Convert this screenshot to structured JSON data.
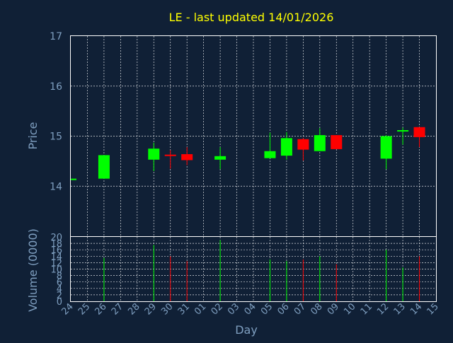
{
  "colors": {
    "background": "#102036",
    "title": "#ffff00",
    "axis_text": "#7f9fc0",
    "up": "#00ff00",
    "down": "#ff0000"
  },
  "chart_data": [
    {
      "type": "candlestick",
      "title": "LE - last updated 14/01/2026",
      "ylabel": "Price",
      "ylim": [
        13.0,
        17.0
      ],
      "yticks": [
        14,
        15,
        16,
        17
      ],
      "grid": true,
      "categories": [
        "24",
        "25",
        "26",
        "27",
        "28",
        "29",
        "30",
        "31",
        "01",
        "02",
        "03",
        "04",
        "05",
        "06",
        "07",
        "08",
        "09",
        "10",
        "11",
        "12",
        "13",
        "14",
        "15"
      ],
      "candles": [
        {
          "day": "24",
          "open": 14.15,
          "close": 14.15,
          "high": 14.15,
          "low": 14.15
        },
        {
          "day": "26",
          "open": 14.15,
          "close": 14.62,
          "high": 14.62,
          "low": 14.15
        },
        {
          "day": "29",
          "open": 14.53,
          "close": 14.75,
          "high": 14.87,
          "low": 14.3
        },
        {
          "day": "30",
          "open": 14.63,
          "close": 14.61,
          "high": 14.72,
          "low": 14.35
        },
        {
          "day": "31",
          "open": 14.64,
          "close": 14.52,
          "high": 14.78,
          "low": 14.42
        },
        {
          "day": "02",
          "open": 14.53,
          "close": 14.6,
          "high": 14.78,
          "low": 14.34
        },
        {
          "day": "05",
          "open": 14.56,
          "close": 14.7,
          "high": 15.07,
          "low": 14.56
        },
        {
          "day": "06",
          "open": 14.61,
          "close": 14.96,
          "high": 15.08,
          "low": 14.53
        },
        {
          "day": "07",
          "open": 14.94,
          "close": 14.73,
          "high": 14.96,
          "low": 14.51
        },
        {
          "day": "08",
          "open": 14.7,
          "close": 15.02,
          "high": 15.16,
          "low": 14.7
        },
        {
          "day": "09",
          "open": 15.02,
          "close": 14.74,
          "high": 15.02,
          "low": 14.74
        },
        {
          "day": "12",
          "open": 14.55,
          "close": 15.0,
          "high": 15.02,
          "low": 14.34
        },
        {
          "day": "13",
          "open": 15.1,
          "close": 15.12,
          "high": 15.17,
          "low": 14.83
        },
        {
          "day": "14",
          "open": 15.18,
          "close": 14.98,
          "high": 15.18,
          "low": 14.78
        }
      ]
    },
    {
      "type": "bar",
      "ylabel": "Volume (0000)",
      "xlabel": "Day",
      "ylim": [
        0,
        20
      ],
      "yticks": [
        0,
        2,
        4,
        6,
        8,
        10,
        12,
        14,
        16,
        18,
        20
      ],
      "grid": true,
      "categories": [
        "24",
        "25",
        "26",
        "27",
        "28",
        "29",
        "30",
        "31",
        "01",
        "02",
        "03",
        "04",
        "05",
        "06",
        "07",
        "08",
        "09",
        "10",
        "11",
        "12",
        "13",
        "14",
        "15"
      ],
      "bars": [
        {
          "day": "26",
          "value": 13.5,
          "direction": "up"
        },
        {
          "day": "29",
          "value": 17.5,
          "direction": "up"
        },
        {
          "day": "30",
          "value": 14.0,
          "direction": "down"
        },
        {
          "day": "31",
          "value": 12.5,
          "direction": "down"
        },
        {
          "day": "02",
          "value": 19.0,
          "direction": "up"
        },
        {
          "day": "05",
          "value": 13.0,
          "direction": "up"
        },
        {
          "day": "06",
          "value": 12.5,
          "direction": "up"
        },
        {
          "day": "07",
          "value": 13.0,
          "direction": "down"
        },
        {
          "day": "08",
          "value": 14.0,
          "direction": "up"
        },
        {
          "day": "09",
          "value": 11.5,
          "direction": "down"
        },
        {
          "day": "12",
          "value": 16.0,
          "direction": "up"
        },
        {
          "day": "13",
          "value": 10.5,
          "direction": "up"
        },
        {
          "day": "14",
          "value": 14.0,
          "direction": "down"
        }
      ]
    }
  ]
}
